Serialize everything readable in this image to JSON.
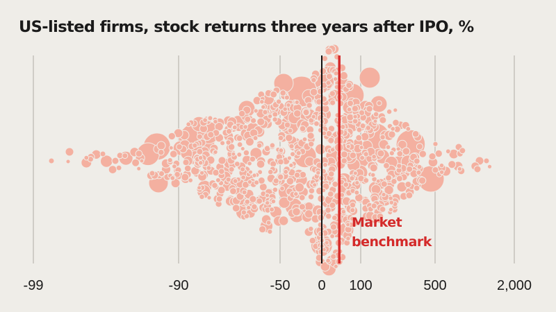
{
  "chart_data": {
    "type": "scatter",
    "subtype": "beeswarm",
    "title": "US-listed firms, stock returns three years after IPO, %",
    "x_scale": "custom-nonlinear",
    "x_ticks": [
      "-99",
      "-90",
      "-50",
      "0",
      "100",
      "500",
      "2,000"
    ],
    "x_tick_values": [
      -99,
      -90,
      -50,
      0,
      100,
      500,
      2000
    ],
    "grid": true,
    "zero_line": {
      "value": 0,
      "color": "#111111"
    },
    "benchmark": {
      "label_line1": "Market",
      "label_line2": "benchmark",
      "value": 45,
      "color": "#d42a2a"
    },
    "marker_color": "#f4b0a0",
    "marker_stroke": "#efede8",
    "notes": "Bubble size indicates firm size; distribution centered near 0, skewed right"
  }
}
